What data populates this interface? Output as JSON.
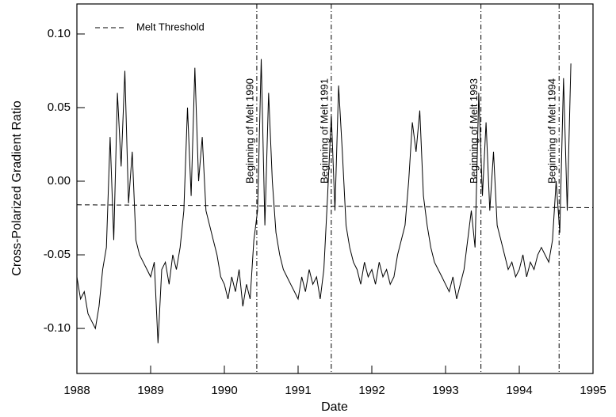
{
  "chart_data": {
    "type": "line",
    "xlabel": "Date",
    "ylabel": "Cross-Polarized Gradient Ratio",
    "xlim": [
      1988,
      1995
    ],
    "ylim": [
      -0.1306,
      0.1204
    ],
    "xticks": [
      1988,
      1989,
      1990,
      1991,
      1992,
      1993,
      1994,
      1995
    ],
    "yticks": [
      {
        "value": -0.1,
        "label": "-0.10"
      },
      {
        "value": -0.05,
        "label": "-0.05"
      },
      {
        "value": 0,
        "label": "0.00"
      },
      {
        "value": 0.05,
        "label": "0.05"
      },
      {
        "value": 0.1,
        "label": "0.10"
      }
    ],
    "color": "#000000",
    "x": [
      1988.0,
      1988.05,
      1988.1,
      1988.15,
      1988.2,
      1988.25,
      1988.3,
      1988.35,
      1988.4,
      1988.45,
      1988.5,
      1988.55,
      1988.6,
      1988.65,
      1988.7,
      1988.75,
      1988.8,
      1988.85,
      1988.9,
      1988.95,
      1989.0,
      1989.05,
      1989.1,
      1989.15,
      1989.2,
      1989.25,
      1989.3,
      1989.35,
      1989.4,
      1989.45,
      1989.5,
      1989.55,
      1989.6,
      1989.65,
      1989.7,
      1989.75,
      1989.8,
      1989.85,
      1989.9,
      1989.95,
      1990.0,
      1990.05,
      1990.1,
      1990.15,
      1990.2,
      1990.25,
      1990.3,
      1990.35,
      1990.4,
      1990.45,
      1990.5,
      1990.55,
      1990.6,
      1990.65,
      1990.7,
      1990.75,
      1990.8,
      1990.85,
      1990.9,
      1990.95,
      1991.0,
      1991.05,
      1991.1,
      1991.15,
      1991.2,
      1991.25,
      1991.3,
      1991.35,
      1991.4,
      1991.45,
      1991.5,
      1991.55,
      1991.6,
      1991.65,
      1991.7,
      1991.75,
      1991.8,
      1991.85,
      1991.9,
      1991.95,
      1992.0,
      1992.05,
      1992.1,
      1992.15,
      1992.2,
      1992.25,
      1992.3,
      1992.35,
      1992.4,
      1992.45,
      1992.5,
      1992.55,
      1992.6,
      1992.65,
      1992.7,
      1992.75,
      1992.8,
      1992.85,
      1992.9,
      1992.95,
      1993.0,
      1993.05,
      1993.1,
      1993.15,
      1993.2,
      1993.25,
      1993.3,
      1993.35,
      1993.4,
      1993.45,
      1993.5,
      1993.55,
      1993.6,
      1993.65,
      1993.7,
      1993.75,
      1993.8,
      1993.85,
      1993.9,
      1993.95,
      1994.0,
      1994.05,
      1994.1,
      1994.15,
      1994.2,
      1994.25,
      1994.3,
      1994.35,
      1994.4,
      1994.45,
      1994.5,
      1994.55,
      1994.6,
      1994.65,
      1994.7
    ],
    "values": [
      -0.065,
      -0.08,
      -0.075,
      -0.09,
      -0.095,
      -0.1,
      -0.085,
      -0.06,
      -0.045,
      0.03,
      -0.04,
      0.06,
      0.01,
      0.075,
      -0.015,
      0.02,
      -0.04,
      -0.05,
      -0.055,
      -0.06,
      -0.065,
      -0.055,
      -0.11,
      -0.06,
      -0.055,
      -0.07,
      -0.05,
      -0.06,
      -0.045,
      -0.02,
      0.05,
      -0.01,
      0.077,
      0.0,
      0.03,
      -0.02,
      -0.03,
      -0.04,
      -0.05,
      -0.065,
      -0.07,
      -0.08,
      -0.065,
      -0.075,
      -0.06,
      -0.085,
      -0.07,
      -0.08,
      -0.04,
      -0.02,
      0.083,
      -0.03,
      0.06,
      0.0,
      -0.035,
      -0.05,
      -0.06,
      -0.065,
      -0.07,
      -0.075,
      -0.08,
      -0.065,
      -0.075,
      -0.06,
      -0.07,
      -0.065,
      -0.08,
      -0.06,
      -0.01,
      0.045,
      -0.02,
      0.065,
      0.02,
      -0.03,
      -0.045,
      -0.055,
      -0.06,
      -0.07,
      -0.055,
      -0.065,
      -0.06,
      -0.07,
      -0.055,
      -0.065,
      -0.06,
      -0.07,
      -0.065,
      -0.05,
      -0.04,
      -0.03,
      0.0,
      0.04,
      0.02,
      0.048,
      -0.01,
      -0.03,
      -0.045,
      -0.055,
      -0.06,
      -0.065,
      -0.07,
      -0.075,
      -0.065,
      -0.08,
      -0.07,
      -0.06,
      -0.04,
      -0.02,
      -0.045,
      0.06,
      -0.01,
      0.04,
      -0.02,
      0.02,
      -0.03,
      -0.04,
      -0.05,
      -0.06,
      -0.055,
      -0.065,
      -0.06,
      -0.05,
      -0.065,
      -0.055,
      -0.06,
      -0.05,
      -0.045,
      -0.05,
      -0.055,
      -0.04,
      0.0,
      -0.035,
      0.07,
      -0.02,
      0.08
    ],
    "threshold": {
      "name": "Melt Threshold",
      "x": [
        1988,
        1995
      ],
      "values": [
        -0.016,
        -0.018
      ]
    },
    "melt_onsets": [
      {
        "x": 1990.44,
        "label": "Beginning of Melt 1990"
      },
      {
        "x": 1991.45,
        "label": "Beginning of Melt 1991"
      },
      {
        "x": 1993.48,
        "label": "Beginning of Melt 1993"
      },
      {
        "x": 1994.54,
        "label": "Beginning of Melt 1994"
      }
    ]
  }
}
